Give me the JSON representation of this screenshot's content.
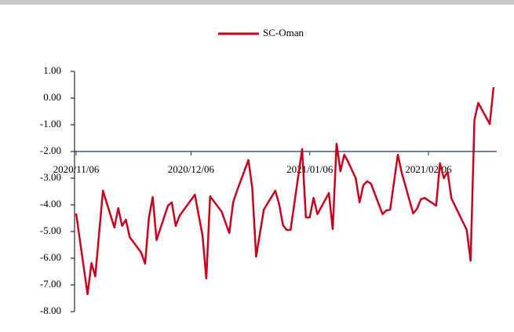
{
  "chart_data": {
    "type": "line",
    "x": [
      "2020/11/06",
      "2020/11/09",
      "2020/11/10",
      "2020/11/11",
      "2020/11/13",
      "2020/11/16",
      "2020/11/17",
      "2020/11/18",
      "2020/11/19",
      "2020/11/20",
      "2020/11/23",
      "2020/11/24",
      "2020/11/25",
      "2020/11/26",
      "2020/11/27",
      "2020/11/30",
      "2020/12/01",
      "2020/12/02",
      "2020/12/03",
      "2020/12/07",
      "2020/12/09",
      "2020/12/10",
      "2020/12/11",
      "2020/12/14",
      "2020/12/16",
      "2020/12/17",
      "2020/12/18",
      "2020/12/21",
      "2020/12/22",
      "2020/12/23",
      "2020/12/24",
      "2020/12/25",
      "2020/12/28",
      "2020/12/29",
      "2020/12/30",
      "2020/12/31",
      "2021/01/01",
      "2021/01/04",
      "2021/01/05",
      "2021/01/06",
      "2021/01/07",
      "2021/01/08",
      "2021/01/11",
      "2021/01/12",
      "2021/01/13",
      "2021/01/14",
      "2021/01/15",
      "2021/01/16",
      "2021/01/18",
      "2021/01/19",
      "2021/01/20",
      "2021/01/21",
      "2021/01/22",
      "2021/01/25",
      "2021/01/26",
      "2021/01/27",
      "2021/01/29",
      "2021/01/30",
      "2021/02/02",
      "2021/02/03",
      "2021/02/04",
      "2021/02/05",
      "2021/02/08",
      "2021/02/09",
      "2021/02/10",
      "2021/02/11",
      "2021/02/12",
      "2021/02/16",
      "2021/02/17",
      "2021/02/18",
      "2021/02/19",
      "2021/02/22",
      "2021/02/23"
    ],
    "series": [
      {
        "name": "SC-Oman",
        "color": "#c8001e",
        "values": [
          -4.32,
          -7.35,
          -6.18,
          -6.68,
          -3.47,
          -4.85,
          -4.12,
          -4.79,
          -4.56,
          -5.21,
          -5.79,
          -6.21,
          -4.5,
          -3.71,
          -5.32,
          -4.03,
          -3.91,
          -4.79,
          -4.41,
          -3.62,
          -5.15,
          -6.76,
          -3.68,
          -4.26,
          -5.06,
          -3.91,
          -3.47,
          -2.32,
          -3.38,
          -5.94,
          -5.06,
          -4.18,
          -3.47,
          -3.97,
          -4.76,
          -4.94,
          -4.94,
          -1.91,
          -4.47,
          -4.47,
          -3.74,
          -4.35,
          -3.56,
          -4.91,
          -1.71,
          -2.74,
          -2.12,
          -2.38,
          -3.0,
          -3.91,
          -3.26,
          -3.12,
          -3.21,
          -4.35,
          -4.21,
          -4.18,
          -2.12,
          -2.79,
          -4.32,
          -4.15,
          -3.79,
          -3.74,
          -4.03,
          -2.44,
          -3.0,
          -2.76,
          -3.76,
          -4.94,
          -6.09,
          -0.82,
          -0.18,
          -0.97,
          0.41
        ]
      }
    ],
    "xlim": [
      "2020/11/06",
      "2021/02/23"
    ],
    "xticks": [
      "2020/11/06",
      "2020/12/06",
      "2021/01/06",
      "2021/02/06"
    ],
    "ylim": [
      -8,
      1
    ],
    "yticks": [
      {
        "value": 1,
        "label": "1.00"
      },
      {
        "value": 0,
        "label": "0.00"
      },
      {
        "value": -1,
        "label": "-1.00"
      },
      {
        "value": -2,
        "label": "-2.00"
      },
      {
        "value": -3,
        "label": "-3.00"
      },
      {
        "value": -4,
        "label": "-4.00"
      },
      {
        "value": -5,
        "label": "-5.00"
      },
      {
        "value": -6,
        "label": "-6.00"
      },
      {
        "value": -7,
        "label": "-7.00"
      },
      {
        "value": -8,
        "label": "-8.00"
      }
    ],
    "x_axis_crosses_at": -2,
    "legend": "top"
  }
}
